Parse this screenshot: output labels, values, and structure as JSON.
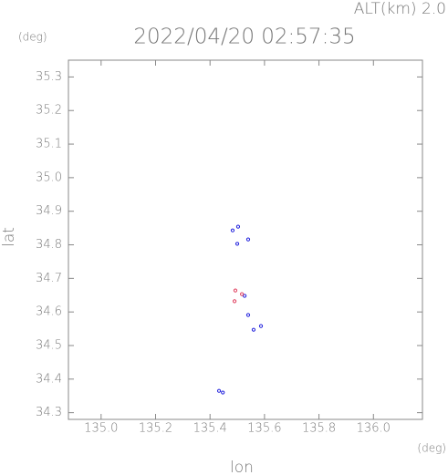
{
  "chart_data": {
    "type": "scatter",
    "title": "2022/04/20 02:57:35",
    "annotation": "ALT(km) 2.0",
    "y_unit": "(deg)",
    "x_unit": "(deg)",
    "xlabel": "lon",
    "ylabel": "lat",
    "xlim": [
      134.88,
      136.18
    ],
    "ylim": [
      34.28,
      35.35
    ],
    "xticks": [
      {
        "value": 135.0,
        "label": "135.0"
      },
      135.2,
      135.4,
      135.6,
      135.8,
      {
        "value": 136.0,
        "label": "136.0"
      }
    ],
    "yticks": [
      34.3,
      34.4,
      34.5,
      34.6,
      34.7,
      34.8,
      34.9,
      {
        "value": 35.0,
        "label": "35.0"
      },
      35.1,
      35.2,
      35.3
    ],
    "series": [
      {
        "color": "#2222dd",
        "x": [
          135.483,
          135.503,
          135.5,
          135.54,
          135.527,
          135.54,
          135.56,
          135.587,
          135.433,
          135.447
        ],
        "values": [
          34.843,
          34.854,
          34.803,
          34.816,
          34.648,
          34.591,
          34.547,
          34.558,
          34.365,
          34.36
        ]
      },
      {
        "color": "#e04060",
        "x": [
          135.493,
          135.517,
          135.49
        ],
        "values": [
          34.664,
          34.653,
          34.632
        ]
      }
    ]
  }
}
